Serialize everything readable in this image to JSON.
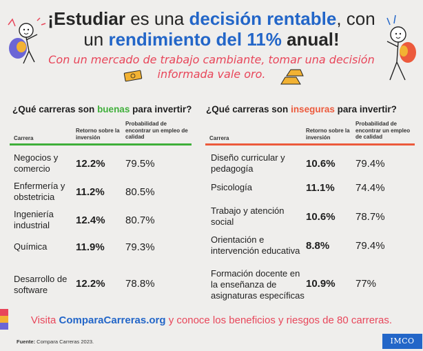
{
  "headline": {
    "part1": "¡Estudiar",
    "part2": " es una ",
    "part3": "decisión rentable",
    "part4": ", con",
    "part5": "un ",
    "part6": "rendimiento del 11%",
    "part7": " anual!"
  },
  "subline": {
    "line1": "Con un mercado de trabajo cambiante, tomar una decisión",
    "line2": "informada vale oro."
  },
  "good_section": {
    "title_pre": "¿Qué carreras son ",
    "title_highlight": "buenas",
    "title_post": " para invertir?",
    "columns": {
      "career": "Carrera",
      "return": "Retorno sobre la inversión",
      "probability": "Probabilidad de encontrar un empleo de calidad"
    },
    "rows": [
      {
        "career": "Negocios y comercio",
        "return": "12.2%",
        "probability": "79.5%"
      },
      {
        "career": "Enfermería y obstetricia",
        "return": "11.2%",
        "probability": "80.5%"
      },
      {
        "career": "Ingeniería industrial",
        "return": "12.4%",
        "probability": "80.7%"
      },
      {
        "career": "Química",
        "return": "11.9%",
        "probability": "79.3%"
      },
      {
        "career": "Desarrollo de software",
        "return": "12.2%",
        "probability": "78.8%"
      }
    ]
  },
  "bad_section": {
    "title_pre": "¿Qué carreras son ",
    "title_highlight": "inseguras",
    "title_post": " para invertir?",
    "columns": {
      "career": "Carrera",
      "return": "Retorno sobre la inversión",
      "probability": "Probabilidad de encontrar un empleo de calidad"
    },
    "rows": [
      {
        "career": "Diseño curricular y pedagogía",
        "return": "10.6%",
        "probability": "79.4%"
      },
      {
        "career": "Psicología",
        "return": "11.1%",
        "probability": "74.4%"
      },
      {
        "career": "Trabajo y atención social",
        "return": "10.6%",
        "probability": "78.7%"
      },
      {
        "career": "Orientación e intervención educativa",
        "return": "8.8%",
        "probability": "79.4%"
      },
      {
        "career": "Formación docente en la enseñanza de asignaturas específicas",
        "return": "10.9%",
        "probability": "77%"
      }
    ]
  },
  "footer": {
    "cta_pre": "Visita ",
    "cta_brand": "ComparaCarreras.org",
    "cta_post": " y conoce los beneficios y riesgos de 80 carreras.",
    "source_label": "Fuente:",
    "source_text": " Compara Carreras 2023.",
    "logo": "IMCO"
  },
  "colors": {
    "blue": "#2366c8",
    "coral": "#e8465a",
    "green": "#3faf3a",
    "orange": "#ec5a3c"
  }
}
